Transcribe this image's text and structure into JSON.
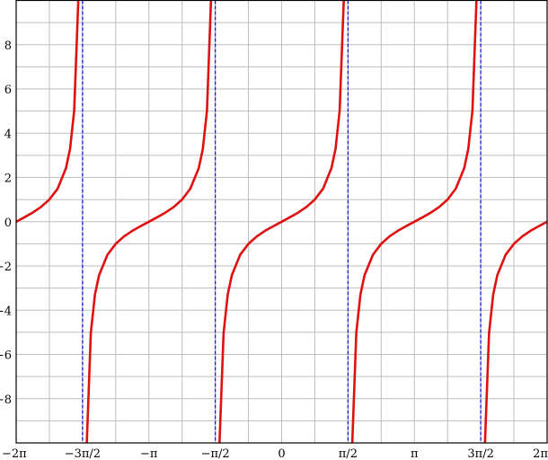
{
  "chart_data": {
    "type": "line",
    "title": "",
    "xlabel": "",
    "ylabel": "",
    "function": "tan(x)",
    "xlim_pi": [
      -2,
      2
    ],
    "ylim": [
      -10,
      10
    ],
    "grid": true,
    "grid_x_step_pi": 0.25,
    "grid_y_step": 1,
    "x_ticks": [
      {
        "value_pi": -2,
        "label": "−2π"
      },
      {
        "value_pi": -1.5,
        "label": "−3π/2"
      },
      {
        "value_pi": -1,
        "label": "−π"
      },
      {
        "value_pi": -0.5,
        "label": "−π/2"
      },
      {
        "value_pi": 0,
        "label": "0"
      },
      {
        "value_pi": 0.5,
        "label": "π/2"
      },
      {
        "value_pi": 1,
        "label": "π"
      },
      {
        "value_pi": 1.5,
        "label": "3π/2"
      },
      {
        "value_pi": 2,
        "label": "2π"
      }
    ],
    "y_ticks": [
      {
        "value": -8,
        "label": "−8"
      },
      {
        "value": -6,
        "label": "−6"
      },
      {
        "value": -4,
        "label": "−4"
      },
      {
        "value": -2,
        "label": "−2"
      },
      {
        "value": 0,
        "label": "0"
      },
      {
        "value": 2,
        "label": "2"
      },
      {
        "value": 4,
        "label": "4"
      },
      {
        "value": 6,
        "label": "6"
      },
      {
        "value": 8,
        "label": "8"
      }
    ],
    "asymptotes_pi": [
      -1.5,
      -0.5,
      0.5,
      1.5
    ],
    "branch_centers_pi": [
      -2,
      -1,
      0,
      1,
      2
    ],
    "branch_samples": {
      "offset_pi": [
        0,
        0.0625,
        0.125,
        0.1875,
        0.25,
        0.3125,
        0.375,
        0.40625,
        0.4375,
        0.46875
      ],
      "tan": [
        0,
        0.199,
        0.414,
        0.668,
        1,
        1.497,
        2.414,
        3.297,
        5.027,
        10.153
      ]
    },
    "colors": {
      "curve": "#e01010",
      "asymptote": "#1a1acc",
      "grid": "#bdbdbd",
      "axes": "#000000"
    }
  }
}
